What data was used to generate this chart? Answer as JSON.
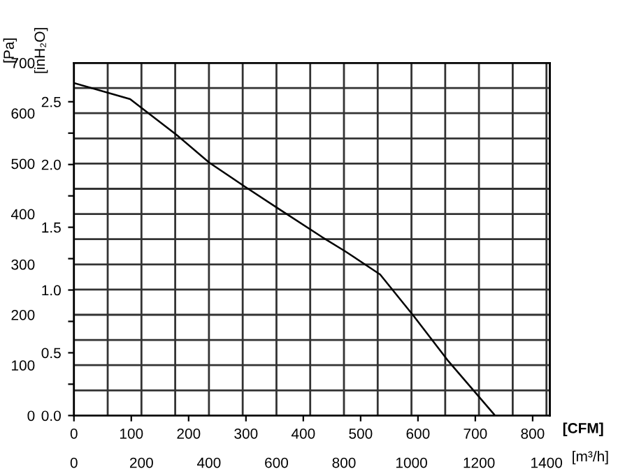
{
  "chart_data": {
    "type": "line",
    "x": [
      0,
      98,
      179,
      236,
      296,
      356,
      433,
      473,
      534,
      593,
      653,
      733
    ],
    "series": [
      {
        "color": "#000000",
        "values": [
          660,
          628,
          557,
          502,
          456,
          411,
          354,
          326,
          280,
          197,
          108,
          2
        ]
      }
    ],
    "xlabel": "[CFM]",
    "xlim": [
      0,
      830
    ],
    "xticks": [
      0,
      100,
      200,
      300,
      400,
      500,
      600,
      700,
      800
    ],
    "x2label": "[m³/h]",
    "x2lim": [
      0,
      1410
    ],
    "x2ticks": [
      0,
      {
        "value": 100,
        "label": null
      },
      200,
      {
        "value": 300,
        "label": null
      },
      400,
      {
        "value": 500,
        "label": null
      },
      600,
      {
        "value": 700,
        "label": null
      },
      800,
      {
        "value": 900,
        "label": null
      },
      1000,
      {
        "value": 1100,
        "label": null
      },
      1200,
      {
        "value": 1300,
        "label": null
      },
      1400
    ],
    "ylabel": "[Pa]",
    "ylim": [
      0,
      700
    ],
    "yticks": [
      0,
      {
        "value": 50,
        "label": null
      },
      100,
      {
        "value": 150,
        "label": null
      },
      200,
      {
        "value": 250,
        "label": null
      },
      300,
      {
        "value": 350,
        "label": null
      },
      400,
      {
        "value": 450,
        "label": null
      },
      500,
      {
        "value": 550,
        "label": null
      },
      600,
      {
        "value": 650,
        "label": null
      },
      700
    ],
    "y2label": "[inH₂O]",
    "y2lim": [
      0,
      2.81
    ],
    "y2ticks": [
      {
        "value": 0,
        "label": "0.0"
      },
      {
        "value": 0.25,
        "label": null
      },
      {
        "value": 0.5,
        "label": "0.5"
      },
      {
        "value": 0.75,
        "label": null
      },
      {
        "value": 1.0,
        "label": "1.0"
      },
      {
        "value": 1.25,
        "label": null
      },
      {
        "value": 1.5,
        "label": "1.5"
      },
      {
        "value": 1.75,
        "label": null
      },
      {
        "value": 2.0,
        "label": "2.0"
      },
      {
        "value": 2.25,
        "label": null
      },
      {
        "value": 2.5,
        "label": "2.5"
      }
    ],
    "grid": true,
    "line_style": "solid",
    "marker": "none"
  }
}
